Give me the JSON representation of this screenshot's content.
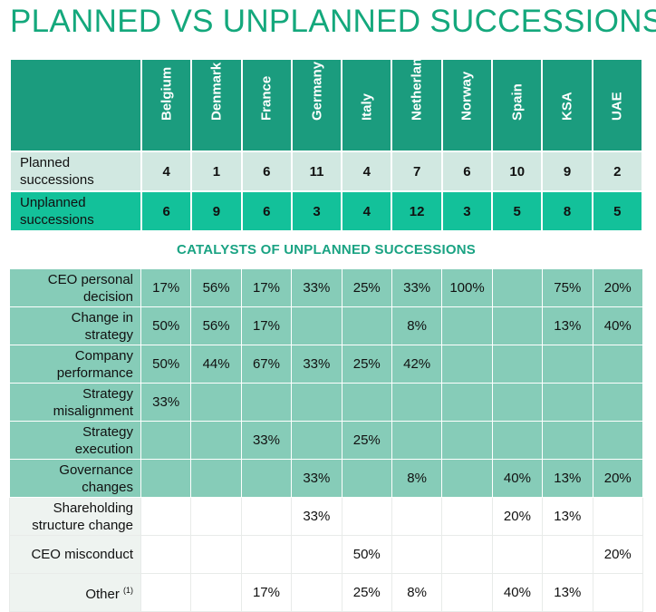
{
  "title": "PLANNED VS UNPLANNED SUCCESSIONS",
  "countries": [
    "Belgium",
    "Denmark",
    "France",
    "Germany",
    "Italy",
    "Netherlands",
    "Norway",
    "Spain",
    "KSA",
    "UAE"
  ],
  "planned": {
    "label_line1": "Planned",
    "label_line2": "successions",
    "values": [
      "4",
      "1",
      "6",
      "11",
      "4",
      "7",
      "6",
      "10",
      "9",
      "2"
    ]
  },
  "unplanned": {
    "label_line1": "Unplanned",
    "label_line2": "successions",
    "values": [
      "6",
      "9",
      "6",
      "3",
      "4",
      "12",
      "3",
      "5",
      "8",
      "5"
    ]
  },
  "catalysts_title": "CATALYSTS OF UNPLANNED SUCCESSIONS",
  "catalysts": [
    {
      "line1": "CEO personal",
      "line2": "decision",
      "values": [
        "17%",
        "56%",
        "17%",
        "33%",
        "25%",
        "33%",
        "100%",
        "",
        "75%",
        "20%"
      ]
    },
    {
      "line1": "Change in",
      "line2": "strategy",
      "values": [
        "50%",
        "56%",
        "17%",
        "",
        "",
        "8%",
        "",
        "",
        "13%",
        "40%"
      ]
    },
    {
      "line1": "Company",
      "line2": "performance",
      "values": [
        "50%",
        "44%",
        "67%",
        "33%",
        "25%",
        "42%",
        "",
        "",
        "",
        ""
      ]
    },
    {
      "line1": "Strategy",
      "line2": "misalignment",
      "values": [
        "33%",
        "",
        "",
        "",
        "",
        "",
        "",
        "",
        "",
        ""
      ]
    },
    {
      "line1": "Strategy",
      "line2": "execution",
      "values": [
        "",
        "",
        "33%",
        "",
        "25%",
        "",
        "",
        "",
        "",
        ""
      ]
    },
    {
      "line1": "Governance",
      "line2": "changes",
      "values": [
        "",
        "",
        "",
        "33%",
        "",
        "8%",
        "",
        "40%",
        "13%",
        "20%"
      ]
    },
    {
      "line1": "Shareholding",
      "line2": "structure change",
      "values": [
        "",
        "",
        "",
        "33%",
        "",
        "",
        "",
        "20%",
        "13%",
        ""
      ]
    },
    {
      "line1": "CEO misconduct",
      "line2": "",
      "values": [
        "",
        "",
        "",
        "",
        "50%",
        "",
        "",
        "",
        "",
        "20%"
      ]
    },
    {
      "line1": "Other",
      "line2": "",
      "footnote": "(1)",
      "values": [
        "",
        "",
        "17%",
        "",
        "25%",
        "8%",
        "",
        "40%",
        "13%",
        ""
      ]
    }
  ]
}
